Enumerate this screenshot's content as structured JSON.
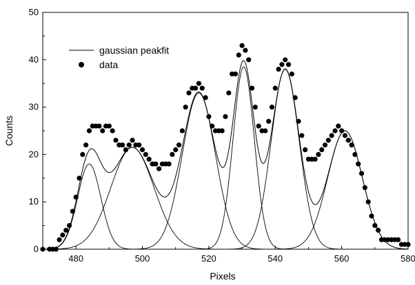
{
  "chart_data": {
    "type": "scatter",
    "title": "",
    "xlabel": "Pixels",
    "ylabel": "Counts",
    "xlim": [
      470,
      580
    ],
    "ylim": [
      0,
      50
    ],
    "x_ticks": [
      480,
      500,
      520,
      540,
      560,
      580
    ],
    "y_ticks": [
      0,
      10,
      20,
      30,
      40,
      50
    ],
    "grid": false,
    "legend_position": "top-left",
    "legend": [
      {
        "label": "gaussian peakfit",
        "marker": "line"
      },
      {
        "label": "data",
        "marker": "circle"
      }
    ],
    "series": [
      {
        "name": "data",
        "kind": "points",
        "x": [
          470,
          472,
          473,
          474,
          475,
          476,
          477,
          478,
          479,
          480,
          481,
          482,
          483,
          484,
          485,
          486,
          487,
          488,
          489,
          490,
          491,
          492,
          493,
          494,
          495,
          496,
          497,
          498,
          499,
          500,
          501,
          502,
          503,
          504,
          505,
          506,
          507,
          508,
          509,
          510,
          511,
          512,
          513,
          514,
          515,
          516,
          517,
          518,
          519,
          520,
          521,
          522,
          523,
          524,
          525,
          526,
          527,
          528,
          529,
          530,
          531,
          532,
          533,
          534,
          535,
          536,
          537,
          538,
          539,
          540,
          541,
          542,
          543,
          544,
          545,
          546,
          547,
          548,
          549,
          550,
          551,
          552,
          553,
          554,
          555,
          556,
          557,
          558,
          559,
          560,
          561,
          562,
          563,
          564,
          565,
          566,
          567,
          568,
          569,
          570,
          571,
          572,
          573,
          574,
          575,
          576,
          577,
          578,
          579,
          580
        ],
        "y": [
          0,
          0,
          0,
          0,
          2,
          3,
          4,
          5,
          8,
          11,
          15,
          20,
          22,
          25,
          26,
          26,
          26,
          25,
          26,
          26,
          25,
          23,
          22,
          22,
          21,
          22,
          23,
          22,
          22,
          21,
          20,
          19,
          18,
          18,
          17,
          18,
          18,
          18,
          20,
          21,
          22,
          25,
          30,
          33,
          34,
          34,
          35,
          34,
          32,
          28,
          26,
          25,
          25,
          25,
          28,
          33,
          37,
          37,
          41,
          43,
          42,
          40,
          34,
          30,
          26,
          25,
          25,
          27,
          30,
          34,
          38,
          39,
          40,
          39,
          37,
          32,
          27,
          24,
          21,
          19,
          19,
          19,
          20,
          21,
          22,
          23,
          24,
          25,
          26,
          25,
          24,
          23,
          22,
          20,
          18,
          16,
          13,
          10,
          7,
          5,
          4,
          2,
          2,
          2,
          2,
          2,
          2,
          1,
          1,
          1
        ]
      },
      {
        "name": "gaussian peakfit",
        "kind": "peaks",
        "peaks": [
          {
            "center": 484,
            "amplitude": 18,
            "sigma": 3.5
          },
          {
            "center": 497,
            "amplitude": 21.5,
            "sigma": 6.5
          },
          {
            "center": 517,
            "amplitude": 33,
            "sigma": 5
          },
          {
            "center": 530.5,
            "amplitude": 38.5,
            "sigma": 3.2
          },
          {
            "center": 543,
            "amplitude": 38,
            "sigma": 4.2
          },
          {
            "center": 561,
            "amplitude": 25,
            "sigma": 5.2
          }
        ]
      }
    ]
  }
}
